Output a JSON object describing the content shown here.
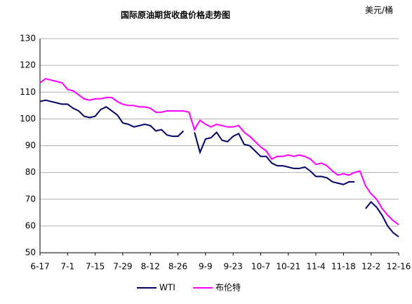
{
  "chart_data": {
    "type": "line",
    "title": "国际原油期货收盘价格走势图",
    "unit_label": "美元/桶",
    "categories": [
      "6-17",
      null,
      null,
      null,
      null,
      "7-1",
      null,
      null,
      null,
      null,
      "7-15",
      null,
      null,
      null,
      null,
      "7-29",
      null,
      null,
      null,
      null,
      "8-12",
      null,
      null,
      null,
      null,
      "8-26",
      null,
      null,
      null,
      null,
      "9-9",
      null,
      null,
      null,
      null,
      "9-23",
      null,
      null,
      null,
      null,
      "10-7",
      null,
      null,
      null,
      null,
      "10-21",
      null,
      null,
      null,
      null,
      "11-4",
      null,
      null,
      null,
      null,
      "11-18",
      null,
      null,
      null,
      null,
      "12-2",
      null,
      null,
      null,
      null,
      "12-16"
    ],
    "series": [
      {
        "name": "WTI",
        "color": "#000066",
        "values": [
          106.5,
          107,
          106.5,
          106,
          105.5,
          105.5,
          104,
          103,
          101,
          100.5,
          101,
          103.5,
          104.5,
          103,
          101.5,
          98.5,
          98,
          97,
          97.5,
          98,
          97.5,
          95.5,
          96,
          94,
          93.5,
          93.5,
          95.5,
          null,
          95,
          87.5,
          92.5,
          93,
          95,
          92,
          91.5,
          93.5,
          94.5,
          90.5,
          90,
          88,
          86,
          86,
          83.5,
          82.5,
          82.5,
          82,
          81.5,
          81.5,
          82,
          80.5,
          78.5,
          78.5,
          78,
          76.5,
          76,
          75.5,
          76.5,
          76.5,
          null,
          66.5,
          69,
          67,
          64,
          60,
          57.5,
          56
        ]
      },
      {
        "name": "布伦特",
        "color": "#ff00ff",
        "values": [
          113.5,
          115,
          114.5,
          114,
          113.5,
          111,
          110.5,
          109,
          107.5,
          107,
          107.5,
          107.5,
          108,
          108,
          106.5,
          105.5,
          105,
          105,
          104.5,
          104.5,
          104,
          102.5,
          102.5,
          103,
          103,
          103,
          103,
          102.5,
          96,
          99.5,
          98,
          97,
          98,
          97.5,
          97,
          97,
          97.5,
          95,
          93.5,
          91.5,
          89.5,
          88,
          85,
          86,
          86,
          86.5,
          86,
          86.5,
          86,
          85,
          83,
          83.5,
          82.5,
          80.5,
          79,
          79.5,
          79,
          80,
          80.5,
          75,
          72,
          70,
          66.5,
          64,
          62,
          60.5
        ]
      }
    ],
    "ylim": [
      50,
      130
    ],
    "yticks": [
      50,
      60,
      70,
      80,
      90,
      100,
      110,
      120,
      130
    ],
    "grid": true
  }
}
